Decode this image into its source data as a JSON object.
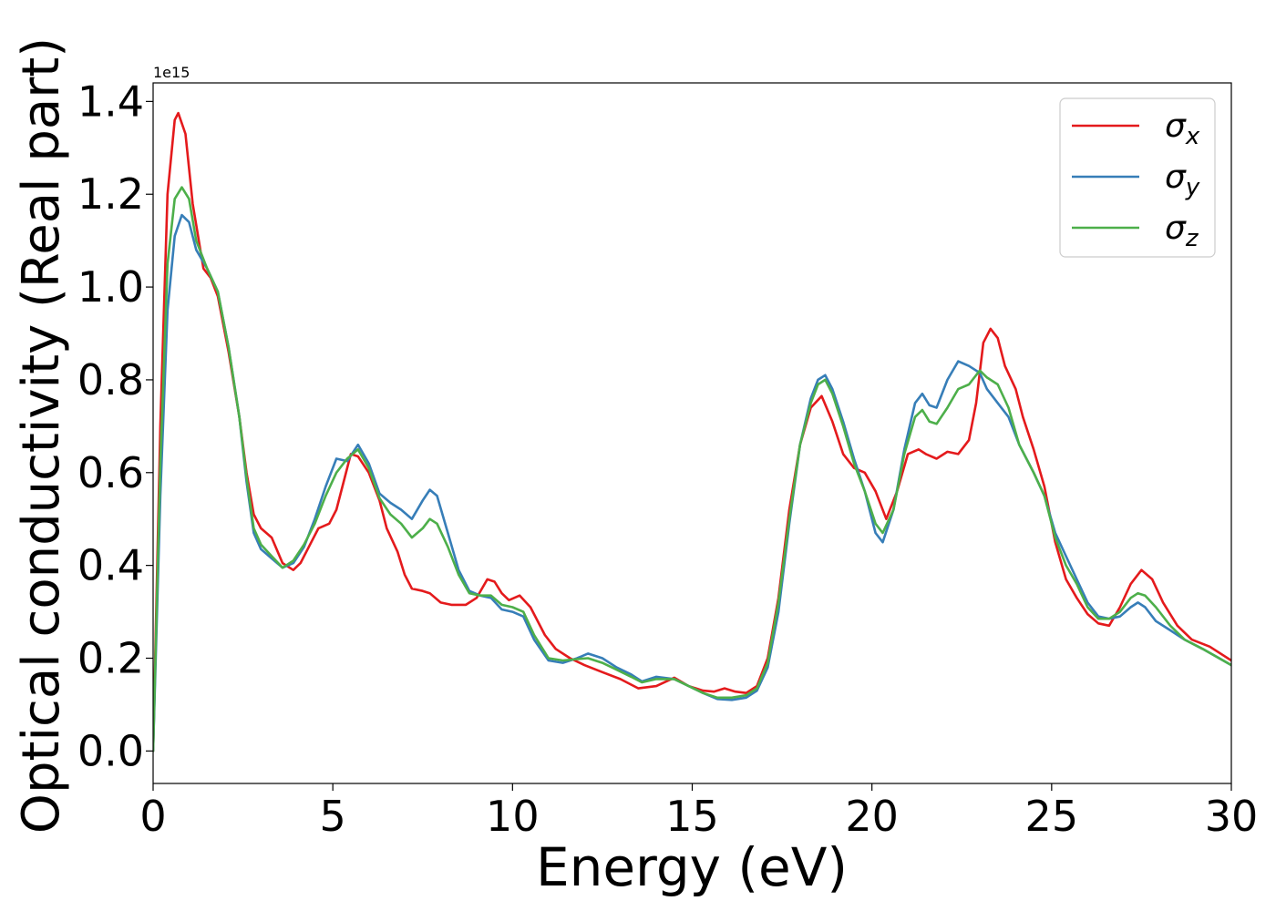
{
  "chart_data": {
    "type": "line",
    "xlabel": "Energy (eV)",
    "ylabel": "Optical conductivity (Real part)",
    "y_offset_label": "1e15",
    "xlim": [
      0,
      30
    ],
    "ylim": [
      -0.07,
      1.44
    ],
    "x_ticks": [
      0,
      5,
      10,
      15,
      20,
      25,
      30
    ],
    "x_tick_labels": [
      "0",
      "5",
      "10",
      "15",
      "20",
      "25",
      "30"
    ],
    "y_ticks": [
      0.0,
      0.2,
      0.4,
      0.6,
      0.8,
      1.0,
      1.2,
      1.4
    ],
    "y_tick_labels": [
      "0.0",
      "0.2",
      "0.4",
      "0.6",
      "0.8",
      "1.0",
      "1.2",
      "1.4"
    ],
    "grid": false,
    "legend_position": "top-right",
    "series": [
      {
        "name": "σx",
        "symbol": "σ",
        "subscript": "x",
        "color": "#e41a1c",
        "points": [
          [
            0,
            0
          ],
          [
            0.2,
            0.7
          ],
          [
            0.4,
            1.2
          ],
          [
            0.6,
            1.36
          ],
          [
            0.7,
            1.375
          ],
          [
            0.9,
            1.33
          ],
          [
            1.1,
            1.18
          ],
          [
            1.4,
            1.04
          ],
          [
            1.6,
            1.02
          ],
          [
            1.8,
            0.98
          ],
          [
            2.1,
            0.86
          ],
          [
            2.4,
            0.72
          ],
          [
            2.6,
            0.6
          ],
          [
            2.8,
            0.51
          ],
          [
            3.0,
            0.48
          ],
          [
            3.3,
            0.46
          ],
          [
            3.6,
            0.405
          ],
          [
            3.9,
            0.39
          ],
          [
            4.1,
            0.405
          ],
          [
            4.4,
            0.45
          ],
          [
            4.6,
            0.48
          ],
          [
            4.9,
            0.49
          ],
          [
            5.1,
            0.52
          ],
          [
            5.3,
            0.58
          ],
          [
            5.5,
            0.64
          ],
          [
            5.7,
            0.635
          ],
          [
            6.0,
            0.6
          ],
          [
            6.3,
            0.54
          ],
          [
            6.5,
            0.48
          ],
          [
            6.8,
            0.43
          ],
          [
            7.0,
            0.38
          ],
          [
            7.2,
            0.35
          ],
          [
            7.5,
            0.345
          ],
          [
            7.7,
            0.34
          ],
          [
            8.0,
            0.32
          ],
          [
            8.3,
            0.315
          ],
          [
            8.7,
            0.315
          ],
          [
            9.0,
            0.33
          ],
          [
            9.3,
            0.37
          ],
          [
            9.5,
            0.365
          ],
          [
            9.7,
            0.34
          ],
          [
            9.9,
            0.325
          ],
          [
            10.2,
            0.335
          ],
          [
            10.5,
            0.31
          ],
          [
            10.9,
            0.25
          ],
          [
            11.2,
            0.22
          ],
          [
            11.6,
            0.2
          ],
          [
            12.0,
            0.185
          ],
          [
            12.5,
            0.17
          ],
          [
            13.0,
            0.155
          ],
          [
            13.5,
            0.135
          ],
          [
            14.0,
            0.14
          ],
          [
            14.5,
            0.158
          ],
          [
            14.9,
            0.14
          ],
          [
            15.3,
            0.13
          ],
          [
            15.6,
            0.128
          ],
          [
            15.9,
            0.135
          ],
          [
            16.2,
            0.128
          ],
          [
            16.5,
            0.125
          ],
          [
            16.8,
            0.14
          ],
          [
            17.1,
            0.2
          ],
          [
            17.4,
            0.33
          ],
          [
            17.7,
            0.52
          ],
          [
            18.0,
            0.66
          ],
          [
            18.3,
            0.74
          ],
          [
            18.6,
            0.765
          ],
          [
            18.9,
            0.71
          ],
          [
            19.2,
            0.64
          ],
          [
            19.5,
            0.61
          ],
          [
            19.8,
            0.6
          ],
          [
            20.1,
            0.56
          ],
          [
            20.4,
            0.5
          ],
          [
            20.7,
            0.56
          ],
          [
            21.0,
            0.64
          ],
          [
            21.3,
            0.65
          ],
          [
            21.5,
            0.64
          ],
          [
            21.8,
            0.63
          ],
          [
            22.1,
            0.645
          ],
          [
            22.4,
            0.64
          ],
          [
            22.7,
            0.67
          ],
          [
            22.9,
            0.75
          ],
          [
            23.1,
            0.88
          ],
          [
            23.3,
            0.91
          ],
          [
            23.5,
            0.89
          ],
          [
            23.7,
            0.83
          ],
          [
            24.0,
            0.78
          ],
          [
            24.2,
            0.72
          ],
          [
            24.5,
            0.65
          ],
          [
            24.8,
            0.57
          ],
          [
            25.1,
            0.45
          ],
          [
            25.4,
            0.37
          ],
          [
            25.7,
            0.33
          ],
          [
            26.0,
            0.295
          ],
          [
            26.3,
            0.275
          ],
          [
            26.6,
            0.27
          ],
          [
            26.9,
            0.31
          ],
          [
            27.2,
            0.36
          ],
          [
            27.5,
            0.39
          ],
          [
            27.8,
            0.37
          ],
          [
            28.1,
            0.32
          ],
          [
            28.5,
            0.27
          ],
          [
            28.9,
            0.24
          ],
          [
            29.4,
            0.225
          ],
          [
            30.0,
            0.195
          ]
        ]
      },
      {
        "name": "σy",
        "symbol": "σ",
        "subscript": "y",
        "color": "#377eb8",
        "points": [
          [
            0,
            0
          ],
          [
            0.2,
            0.55
          ],
          [
            0.4,
            0.95
          ],
          [
            0.6,
            1.11
          ],
          [
            0.8,
            1.155
          ],
          [
            1.0,
            1.14
          ],
          [
            1.2,
            1.08
          ],
          [
            1.5,
            1.04
          ],
          [
            1.8,
            0.99
          ],
          [
            2.1,
            0.87
          ],
          [
            2.4,
            0.72
          ],
          [
            2.6,
            0.58
          ],
          [
            2.8,
            0.47
          ],
          [
            3.0,
            0.435
          ],
          [
            3.3,
            0.415
          ],
          [
            3.6,
            0.395
          ],
          [
            3.9,
            0.405
          ],
          [
            4.2,
            0.44
          ],
          [
            4.5,
            0.5
          ],
          [
            4.8,
            0.57
          ],
          [
            5.1,
            0.63
          ],
          [
            5.4,
            0.625
          ],
          [
            5.7,
            0.66
          ],
          [
            6.0,
            0.62
          ],
          [
            6.3,
            0.555
          ],
          [
            6.6,
            0.535
          ],
          [
            6.9,
            0.52
          ],
          [
            7.2,
            0.5
          ],
          [
            7.5,
            0.54
          ],
          [
            7.7,
            0.563
          ],
          [
            7.9,
            0.55
          ],
          [
            8.2,
            0.47
          ],
          [
            8.5,
            0.39
          ],
          [
            8.8,
            0.345
          ],
          [
            9.1,
            0.335
          ],
          [
            9.4,
            0.33
          ],
          [
            9.7,
            0.305
          ],
          [
            10.0,
            0.3
          ],
          [
            10.3,
            0.29
          ],
          [
            10.6,
            0.24
          ],
          [
            11.0,
            0.195
          ],
          [
            11.4,
            0.19
          ],
          [
            11.8,
            0.2
          ],
          [
            12.1,
            0.21
          ],
          [
            12.5,
            0.2
          ],
          [
            12.9,
            0.18
          ],
          [
            13.3,
            0.165
          ],
          [
            13.6,
            0.15
          ],
          [
            14.0,
            0.16
          ],
          [
            14.5,
            0.155
          ],
          [
            14.9,
            0.14
          ],
          [
            15.3,
            0.125
          ],
          [
            15.7,
            0.112
          ],
          [
            16.1,
            0.11
          ],
          [
            16.5,
            0.115
          ],
          [
            16.8,
            0.13
          ],
          [
            17.1,
            0.18
          ],
          [
            17.4,
            0.3
          ],
          [
            17.7,
            0.49
          ],
          [
            18.0,
            0.66
          ],
          [
            18.3,
            0.76
          ],
          [
            18.5,
            0.8
          ],
          [
            18.7,
            0.81
          ],
          [
            18.9,
            0.78
          ],
          [
            19.2,
            0.71
          ],
          [
            19.5,
            0.63
          ],
          [
            19.8,
            0.56
          ],
          [
            20.1,
            0.47
          ],
          [
            20.3,
            0.45
          ],
          [
            20.6,
            0.52
          ],
          [
            20.9,
            0.65
          ],
          [
            21.2,
            0.75
          ],
          [
            21.4,
            0.77
          ],
          [
            21.6,
            0.745
          ],
          [
            21.8,
            0.74
          ],
          [
            22.1,
            0.8
          ],
          [
            22.4,
            0.84
          ],
          [
            22.7,
            0.83
          ],
          [
            23.0,
            0.815
          ],
          [
            23.2,
            0.78
          ],
          [
            23.5,
            0.75
          ],
          [
            23.8,
            0.72
          ],
          [
            24.1,
            0.66
          ],
          [
            24.5,
            0.6
          ],
          [
            24.8,
            0.55
          ],
          [
            25.1,
            0.47
          ],
          [
            25.4,
            0.42
          ],
          [
            25.7,
            0.37
          ],
          [
            26.0,
            0.32
          ],
          [
            26.3,
            0.29
          ],
          [
            26.6,
            0.285
          ],
          [
            26.9,
            0.29
          ],
          [
            27.2,
            0.31
          ],
          [
            27.4,
            0.32
          ],
          [
            27.6,
            0.31
          ],
          [
            27.9,
            0.28
          ],
          [
            28.3,
            0.26
          ],
          [
            28.7,
            0.24
          ],
          [
            29.2,
            0.22
          ],
          [
            30.0,
            0.185
          ]
        ]
      },
      {
        "name": "σz",
        "symbol": "σ",
        "subscript": "z",
        "color": "#4daf4a",
        "points": [
          [
            0,
            0
          ],
          [
            0.2,
            0.62
          ],
          [
            0.4,
            1.05
          ],
          [
            0.6,
            1.19
          ],
          [
            0.8,
            1.215
          ],
          [
            1.0,
            1.19
          ],
          [
            1.2,
            1.1
          ],
          [
            1.5,
            1.04
          ],
          [
            1.8,
            0.99
          ],
          [
            2.1,
            0.87
          ],
          [
            2.4,
            0.72
          ],
          [
            2.6,
            0.59
          ],
          [
            2.8,
            0.48
          ],
          [
            3.0,
            0.445
          ],
          [
            3.3,
            0.42
          ],
          [
            3.6,
            0.395
          ],
          [
            3.9,
            0.41
          ],
          [
            4.2,
            0.445
          ],
          [
            4.5,
            0.49
          ],
          [
            4.8,
            0.55
          ],
          [
            5.1,
            0.6
          ],
          [
            5.4,
            0.63
          ],
          [
            5.7,
            0.65
          ],
          [
            6.0,
            0.61
          ],
          [
            6.3,
            0.545
          ],
          [
            6.6,
            0.51
          ],
          [
            6.9,
            0.49
          ],
          [
            7.2,
            0.46
          ],
          [
            7.5,
            0.48
          ],
          [
            7.7,
            0.5
          ],
          [
            7.9,
            0.49
          ],
          [
            8.2,
            0.44
          ],
          [
            8.5,
            0.38
          ],
          [
            8.8,
            0.34
          ],
          [
            9.1,
            0.335
          ],
          [
            9.4,
            0.335
          ],
          [
            9.7,
            0.315
          ],
          [
            10.0,
            0.31
          ],
          [
            10.3,
            0.3
          ],
          [
            10.6,
            0.25
          ],
          [
            11.0,
            0.2
          ],
          [
            11.4,
            0.195
          ],
          [
            11.8,
            0.198
          ],
          [
            12.1,
            0.2
          ],
          [
            12.5,
            0.19
          ],
          [
            12.9,
            0.175
          ],
          [
            13.3,
            0.16
          ],
          [
            13.6,
            0.148
          ],
          [
            14.0,
            0.155
          ],
          [
            14.5,
            0.155
          ],
          [
            14.9,
            0.14
          ],
          [
            15.3,
            0.125
          ],
          [
            15.7,
            0.115
          ],
          [
            16.1,
            0.115
          ],
          [
            16.5,
            0.12
          ],
          [
            16.8,
            0.135
          ],
          [
            17.1,
            0.19
          ],
          [
            17.4,
            0.32
          ],
          [
            17.7,
            0.5
          ],
          [
            18.0,
            0.66
          ],
          [
            18.3,
            0.75
          ],
          [
            18.5,
            0.79
          ],
          [
            18.7,
            0.8
          ],
          [
            18.9,
            0.77
          ],
          [
            19.2,
            0.7
          ],
          [
            19.5,
            0.62
          ],
          [
            19.8,
            0.56
          ],
          [
            20.1,
            0.49
          ],
          [
            20.3,
            0.47
          ],
          [
            20.6,
            0.52
          ],
          [
            20.9,
            0.64
          ],
          [
            21.2,
            0.72
          ],
          [
            21.4,
            0.735
          ],
          [
            21.6,
            0.71
          ],
          [
            21.8,
            0.705
          ],
          [
            22.1,
            0.74
          ],
          [
            22.4,
            0.78
          ],
          [
            22.7,
            0.79
          ],
          [
            23.0,
            0.82
          ],
          [
            23.2,
            0.805
          ],
          [
            23.5,
            0.79
          ],
          [
            23.8,
            0.74
          ],
          [
            24.1,
            0.66
          ],
          [
            24.5,
            0.6
          ],
          [
            24.8,
            0.55
          ],
          [
            25.1,
            0.46
          ],
          [
            25.4,
            0.4
          ],
          [
            25.7,
            0.36
          ],
          [
            26.0,
            0.31
          ],
          [
            26.3,
            0.285
          ],
          [
            26.6,
            0.285
          ],
          [
            26.9,
            0.3
          ],
          [
            27.2,
            0.33
          ],
          [
            27.4,
            0.34
          ],
          [
            27.6,
            0.335
          ],
          [
            27.9,
            0.31
          ],
          [
            28.3,
            0.27
          ],
          [
            28.7,
            0.24
          ],
          [
            29.2,
            0.22
          ],
          [
            30.0,
            0.185
          ]
        ]
      }
    ]
  }
}
